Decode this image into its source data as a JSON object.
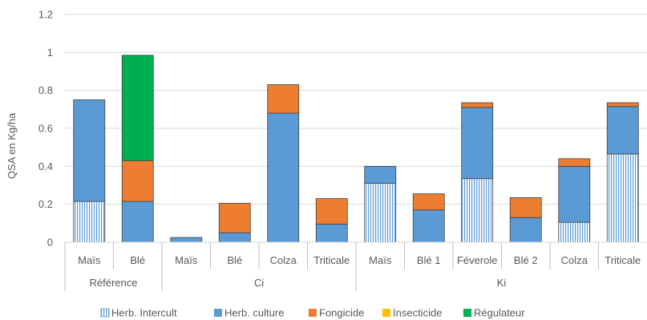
{
  "chart_data": {
    "type": "bar",
    "stacked": true,
    "ylabel": "QSA en Kg/ha",
    "ylim": [
      0,
      1.2
    ],
    "yticks": [
      "0",
      "0.2",
      "0.4",
      "0.6",
      "0.8",
      "1",
      "1.2"
    ],
    "grid": true,
    "legend_position": "bottom",
    "categories": [
      "Maïs",
      "Blé",
      "Maïs",
      "Blé",
      "Colza",
      "Triticale",
      "Maïs",
      "Blé 1",
      "Féverole",
      "Blé 2",
      "Colza",
      "Triticale"
    ],
    "groups": [
      {
        "label": "Référence",
        "count": 2
      },
      {
        "label": "Ci",
        "count": 4
      },
      {
        "label": "Ki",
        "count": 6
      }
    ],
    "series": [
      {
        "name": "Herb. Intercult",
        "color": "#ffffff",
        "stroke": "#5b9bd5",
        "pattern": "vertical-stripes",
        "values": [
          0.215,
          0,
          0,
          0,
          0,
          0,
          0.31,
          0,
          0.335,
          0,
          0.105,
          0.465
        ]
      },
      {
        "name": "Herb. culture",
        "color": "#5b9bd5",
        "values": [
          0.535,
          0.215,
          0.025,
          0.05,
          0.68,
          0.095,
          0.09,
          0.17,
          0.375,
          0.13,
          0.295,
          0.25
        ]
      },
      {
        "name": "Fongicide",
        "color": "#ed7d31",
        "values": [
          0,
          0.215,
          0,
          0.155,
          0.15,
          0.135,
          0,
          0.085,
          0.025,
          0.105,
          0.04,
          0.02
        ]
      },
      {
        "name": "Insecticide",
        "color": "#ffc000",
        "values": [
          0,
          0,
          0,
          0,
          0,
          0,
          0,
          0,
          0,
          0,
          0,
          0
        ]
      },
      {
        "name": "Régulateur",
        "color": "#00b050",
        "values": [
          0,
          0.555,
          0,
          0,
          0,
          0,
          0,
          0,
          0,
          0,
          0,
          0
        ]
      }
    ]
  }
}
